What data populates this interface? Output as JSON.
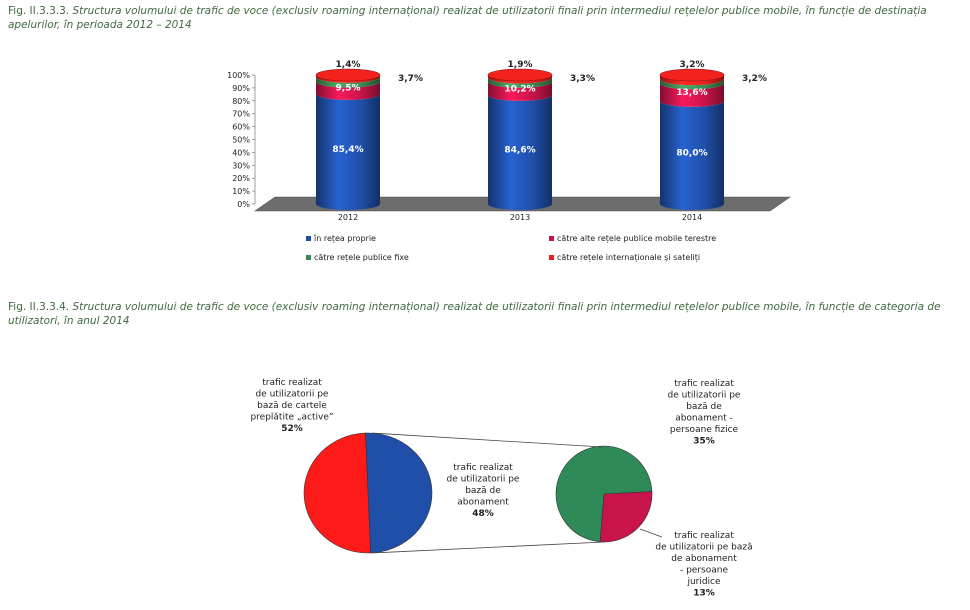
{
  "captions": {
    "fig1_num": "Fig. II.3.3.3.",
    "fig1_text": "Structura volumului de trafic de voce (exclusiv roaming internațional) realizat de utilizatorii finali prin intermediul rețelelor publice mobile, în funcție de destinația apelurilor, în perioada 2012 – 2014",
    "fig2_num": "Fig. II.3.3.4.",
    "fig2_text": "Structura volumului de trafic de voce (exclusiv roaming internațional) realizat de utilizatorii finali prin intermediul rețelelor publice mobile, în funcție de categoria de utilizatori, în anul 2014"
  },
  "chart_data": [
    {
      "type": "bar",
      "stacked": true,
      "style": "3d-cylinder",
      "categories": [
        "2012",
        "2013",
        "2014"
      ],
      "y_ticks": [
        "0%",
        "10%",
        "20%",
        "30%",
        "40%",
        "50%",
        "60%",
        "70%",
        "80%",
        "90%",
        "100%"
      ],
      "ylim": [
        0,
        100
      ],
      "legend_position": "bottom",
      "series": [
        {
          "name": "în rețea proprie",
          "color": "#1f4fa8",
          "values": [
            85.4,
            84.6,
            80.0
          ],
          "labels": [
            "85,4%",
            "84,6%",
            "80,0%"
          ]
        },
        {
          "name": "către alte rețele publice mobile terestre",
          "color": "#c8144a",
          "values": [
            9.5,
            10.2,
            13.6
          ],
          "labels": [
            "9,5%",
            "10,2%",
            "13,6%"
          ]
        },
        {
          "name": "către rețele publice fixe",
          "color": "#3a8a52",
          "values": [
            3.7,
            3.3,
            3.2
          ],
          "labels": [
            "3,7%",
            "3,3%",
            "3,2%"
          ]
        },
        {
          "name": "către rețele internaționale și sateliți",
          "color": "#e8201c",
          "values": [
            1.4,
            1.9,
            3.2
          ],
          "labels": [
            "1,4%",
            "1,9%",
            "3,2%"
          ]
        }
      ]
    },
    {
      "type": "pie",
      "style": "pie-of-pie",
      "main": {
        "slices": [
          {
            "label": "trafic realizat de utilizatorii pe bază de cartele preplătite „active”",
            "value": 52,
            "value_label": "52%",
            "color": "#ff1a1a"
          },
          {
            "label": "trafic realizat de utilizatorii pe bază de abonament",
            "value": 48,
            "value_label": "48%",
            "color": "#1f4fa8"
          }
        ]
      },
      "secondary": {
        "slices": [
          {
            "label": "trafic realizat de utilizatorii pe bază de abonament - persoane fizice",
            "value": 35,
            "value_label": "35%",
            "color": "#2e8b57"
          },
          {
            "label": "trafic realizat de utilizatorii pe bază de abonament - persoane juridice",
            "value": 13,
            "value_label": "13%",
            "color": "#c8144a"
          }
        ]
      }
    }
  ]
}
